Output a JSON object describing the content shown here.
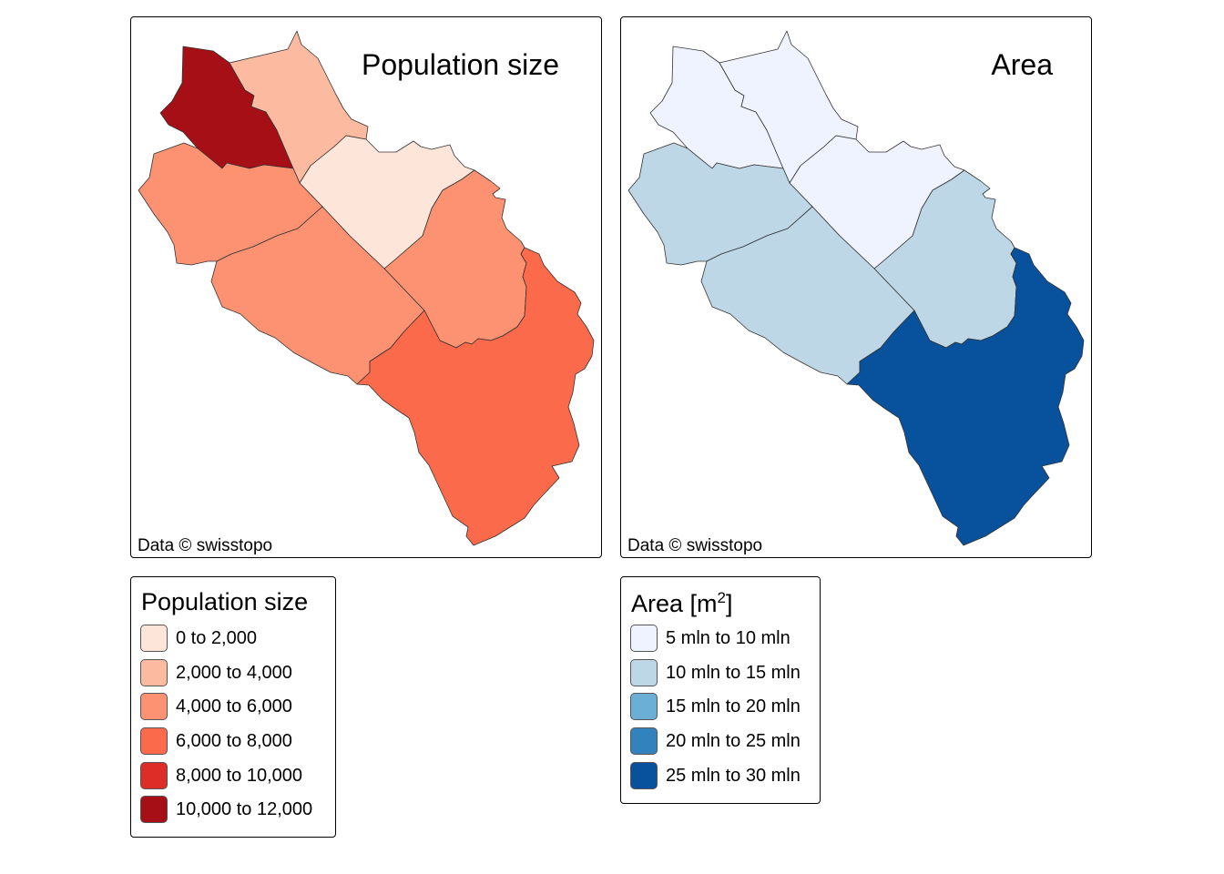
{
  "maps": [
    {
      "title": "Population size",
      "credit": "Data © swisstopo",
      "border_color": "#333333",
      "fills": {
        "north": "#a50f15",
        "north_east": "#fcbba1",
        "centre": "#fee5d9",
        "west": "#fc9272",
        "south_west": "#fc9272",
        "east": "#fc9272",
        "south_east": "#fb6a4a"
      }
    },
    {
      "title": "Area",
      "credit": "Data © swisstopo",
      "border_color": "#333333",
      "fills": {
        "north": "#eff3ff",
        "north_east": "#eff3ff",
        "centre": "#eff3ff",
        "west": "#bdd7e7",
        "south_west": "#bdd7e7",
        "east": "#bdd7e7",
        "south_east": "#08519c"
      }
    }
  ],
  "legends": [
    {
      "title": "Population size",
      "items": [
        {
          "label": "0 to 2,000",
          "color": "#fee5d9"
        },
        {
          "label": "2,000 to 4,000",
          "color": "#fcbba1"
        },
        {
          "label": "4,000 to 6,000",
          "color": "#fc9272"
        },
        {
          "label": "6,000 to 8,000",
          "color": "#fb6a4a"
        },
        {
          "label": "8,000 to 10,000",
          "color": "#de2d26"
        },
        {
          "label": "10,000 to 12,000",
          "color": "#a50f15"
        }
      ]
    },
    {
      "title": "Area [m",
      "title_superscript": "2",
      "title_suffix": "]",
      "items": [
        {
          "label": "5 mln to 10 mln",
          "color": "#eff3ff"
        },
        {
          "label": "10 mln to 15 mln",
          "color": "#bdd7e7"
        },
        {
          "label": "15 mln to 20 mln",
          "color": "#6baed6"
        },
        {
          "label": "20 mln to 25 mln",
          "color": "#3182bd"
        },
        {
          "label": "25 mln to 30 mln",
          "color": "#08519c"
        }
      ]
    }
  ]
}
